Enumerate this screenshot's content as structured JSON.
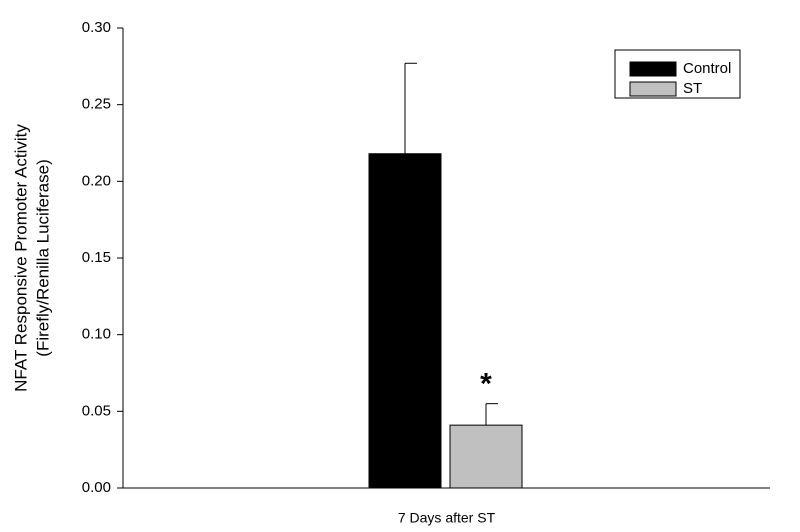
{
  "chart_data": {
    "type": "bar",
    "ylabel": [
      "NFAT Responsive Promoter Activity",
      "(Firefly/Renilla Luciferase)"
    ],
    "categories": [
      "7 Days after ST"
    ],
    "series": [
      {
        "name": "Control",
        "color": "#000000",
        "values": [
          0.218
        ],
        "errors": [
          0.059
        ]
      },
      {
        "name": "ST",
        "color": "#c0c0c0",
        "values": [
          0.041
        ],
        "errors": [
          0.014
        ]
      }
    ],
    "annotations": [
      {
        "text": "*",
        "series": 1,
        "category": 0
      }
    ],
    "ylim": [
      0,
      0.3
    ],
    "yticks": [
      {
        "value": 0,
        "label": "0.00"
      },
      {
        "value": 0.05,
        "label": "0.05"
      },
      {
        "value": 0.1,
        "label": "0.10"
      },
      {
        "value": 0.15,
        "label": "0.15"
      },
      {
        "value": 0.2,
        "label": "0.20"
      },
      {
        "value": 0.25,
        "label": "0.25"
      },
      {
        "value": 0.3,
        "label": "0.30"
      }
    ],
    "grid": false,
    "legend": "top right"
  }
}
